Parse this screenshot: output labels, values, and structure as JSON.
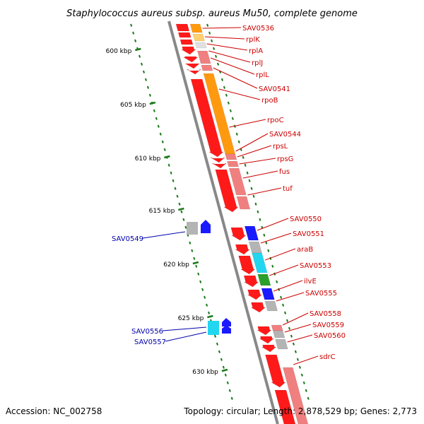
{
  "title": "Staphylococcus aureus subsp. aureus Mu50, complete genome",
  "footer": {
    "accession": "Accession: NC_002758",
    "summary": "Topology: circular; Length: 2,878,529 bp; Genes: 2,773"
  },
  "colors": {
    "forward_label": "#cc0000",
    "reverse_label": "#0000aa",
    "backbone": "#888888",
    "tick": "#1a7a1a"
  },
  "ticks": [
    "600 kbp",
    "605 kbp",
    "610 kbp",
    "615 kbp",
    "620 kbp",
    "625 kbp",
    "630 kbp"
  ],
  "forward_labels": [
    "SAV0536",
    "rplK",
    "rplA",
    "rplJ",
    "rplL",
    "SAV0541",
    "rpoB",
    "rpoC",
    "SAV0544",
    "rpsL",
    "rpsG",
    "fus",
    "tuf",
    "SAV0550",
    "SAV0551",
    "araB",
    "SAV0553",
    "ilvE",
    "SAV0555",
    "SAV0558",
    "SAV0559",
    "SAV0560",
    "sdrC"
  ],
  "reverse_labels": [
    "SAV0549",
    "SAV0556",
    "SAV0557"
  ]
}
